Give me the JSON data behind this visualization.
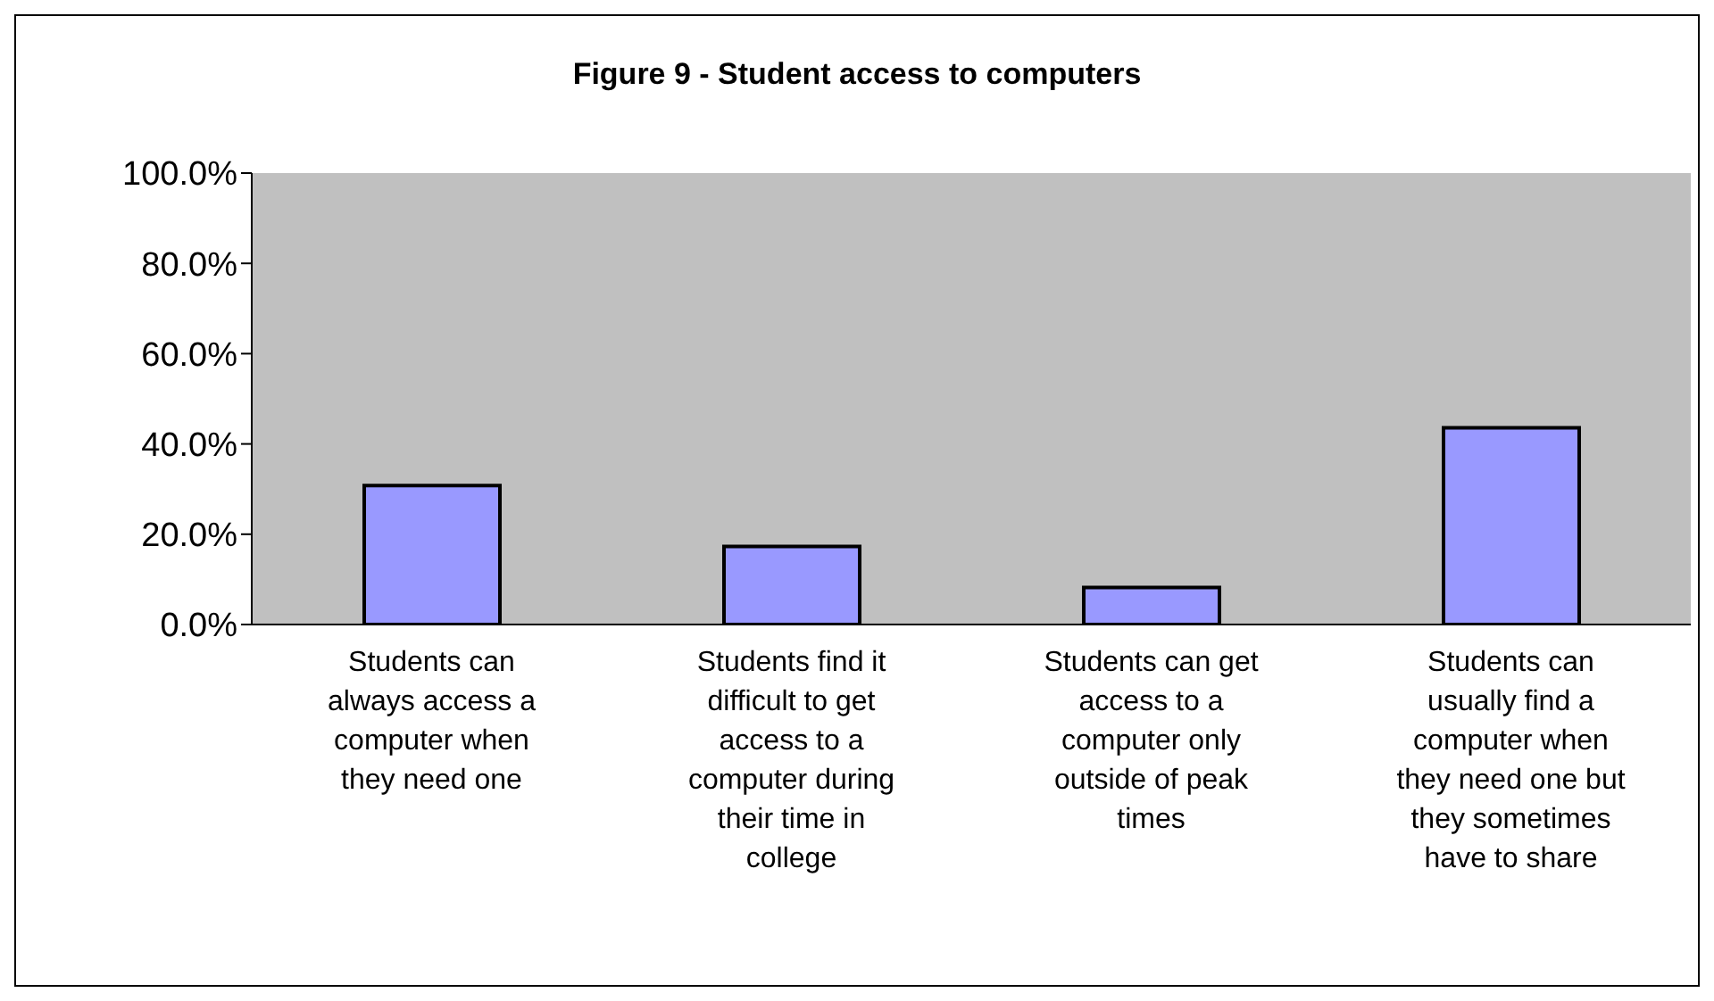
{
  "chart_data": {
    "type": "bar",
    "title": "Figure 9 - Student access to computers",
    "categories": [
      "Students can always access a computer when they need one",
      "Students find it difficult to get access to a computer during their time in college",
      "Students can get access to a computer only outside of peak times",
      "Students can usually find a computer when they need one but they sometimes have to share"
    ],
    "values": [
      30.8,
      17.3,
      8.2,
      43.6
    ],
    "color": "#9999ff",
    "ylim": [
      0,
      100
    ],
    "yticks": [
      {
        "value": 0,
        "label": "0.0%"
      },
      {
        "value": 20,
        "label": "20.0%"
      },
      {
        "value": 40,
        "label": "40.0%"
      },
      {
        "value": 60,
        "label": "60.0%"
      },
      {
        "value": 80,
        "label": "80.0%"
      },
      {
        "value": 100,
        "label": "100.0%"
      }
    ],
    "grid": false,
    "legend": false
  }
}
